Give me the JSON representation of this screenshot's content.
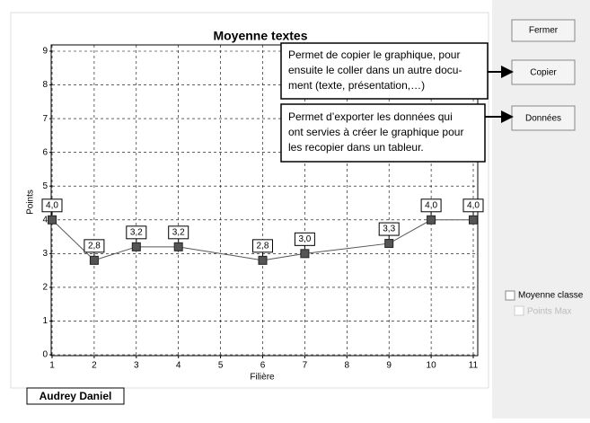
{
  "chart_data": {
    "type": "line",
    "title": "Moyenne textes",
    "x_label": "Filière",
    "y_label": "Points",
    "x": [
      1,
      2,
      3,
      4,
      6,
      7,
      9,
      10,
      11
    ],
    "values": [
      4.0,
      2.8,
      3.2,
      3.2,
      2.8,
      3.0,
      3.3,
      4.0,
      4.0
    ],
    "value_labels": [
      "4,0",
      "2,8",
      "3,2",
      "3,2",
      "2,8",
      "3,0",
      "3,3",
      "4,0",
      "4,0"
    ],
    "color": "#555555",
    "xlim": [
      1,
      11
    ],
    "xticks": [
      1,
      2,
      3,
      4,
      5,
      6,
      7,
      8,
      9,
      10,
      11
    ],
    "ylim": [
      0,
      9
    ],
    "yticks": [
      0,
      1,
      2,
      3,
      4,
      5,
      6,
      7,
      8,
      9
    ],
    "grid": true
  },
  "buttons": [
    "Fermer",
    "Copier",
    "Données"
  ],
  "callouts": [
    [
      "Permet de copier le graphique, pour",
      "ensuite le coller dans un autre docu-",
      "ment (texte, présentation,…)"
    ],
    [
      "Permet d’exporter les données qui",
      "ont servies à créer le graphique pour",
      "les recopier dans un tableur."
    ]
  ],
  "checkboxes": [
    "Moyenne classe",
    "Points Max"
  ],
  "student": "Audrey Daniel"
}
